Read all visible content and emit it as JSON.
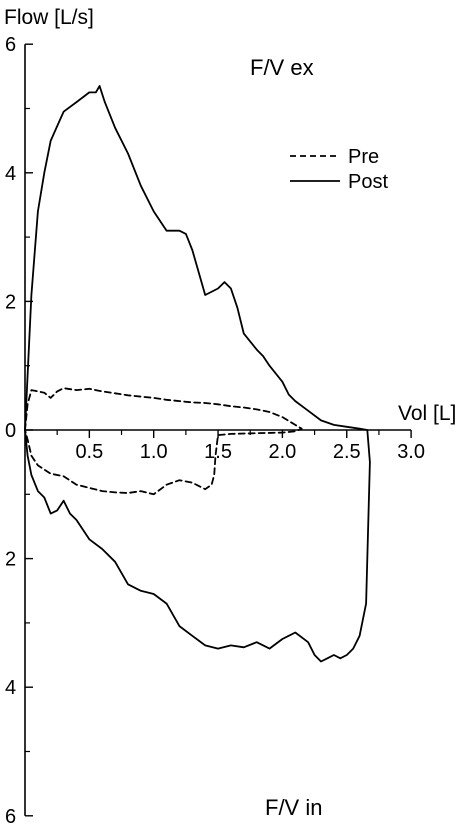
{
  "chart_data": {
    "type": "line",
    "title": "",
    "ylabel": "Flow [L/s]",
    "xlabel": "Vol [L]",
    "upper_label": "F/V ex",
    "lower_label": "F/V in",
    "xlim": [
      0,
      3.0
    ],
    "ylim": [
      -6,
      6
    ],
    "x_ticks": [
      {
        "value": 0.5,
        "label": "0.5"
      },
      {
        "value": 1.0,
        "label": "1.0"
      },
      {
        "value": 1.5,
        "label": "1.5"
      },
      {
        "value": 2.0,
        "label": "2.0"
      },
      {
        "value": 2.5,
        "label": "2.5"
      },
      {
        "value": 3.0,
        "label": "3.0"
      }
    ],
    "y_ticks": [
      {
        "value": 6,
        "label": "6"
      },
      {
        "value": 4,
        "label": "4"
      },
      {
        "value": 2,
        "label": "2"
      },
      {
        "value": 0,
        "label": "0"
      },
      {
        "value": -2,
        "label": "2"
      },
      {
        "value": -4,
        "label": "4"
      },
      {
        "value": -6,
        "label": "6"
      }
    ],
    "grid": false,
    "legend": {
      "placement": "top-right",
      "entries": [
        "Pre",
        "Post"
      ]
    },
    "series": [
      {
        "name": "Pre",
        "style": "dashed",
        "x": [
          0,
          0.02,
          0.05,
          0.1,
          0.15,
          0.2,
          0.25,
          0.3,
          0.4,
          0.5,
          0.6,
          0.7,
          0.8,
          0.9,
          1.0,
          1.1,
          1.2,
          1.3,
          1.4,
          1.5,
          1.6,
          1.7,
          1.8,
          1.9,
          2.0,
          2.1,
          2.15,
          2.1,
          2.0,
          1.8,
          1.6,
          1.5,
          1.48,
          1.47,
          1.45,
          1.4,
          1.3,
          1.2,
          1.1,
          1.0,
          0.9,
          0.8,
          0.7,
          0.6,
          0.5,
          0.4,
          0.3,
          0.2,
          0.1,
          0.05,
          0.02,
          0
        ],
        "y": [
          0,
          0.4,
          0.62,
          0.6,
          0.58,
          0.5,
          0.6,
          0.65,
          0.62,
          0.64,
          0.6,
          0.57,
          0.54,
          0.52,
          0.5,
          0.47,
          0.45,
          0.43,
          0.42,
          0.4,
          0.37,
          0.35,
          0.32,
          0.28,
          0.2,
          0.08,
          0.02,
          -0.02,
          -0.04,
          -0.05,
          -0.06,
          -0.08,
          -0.4,
          -0.7,
          -0.85,
          -0.92,
          -0.82,
          -0.78,
          -0.85,
          -1.0,
          -0.95,
          -0.98,
          -0.97,
          -0.95,
          -0.9,
          -0.85,
          -0.72,
          -0.68,
          -0.55,
          -0.4,
          -0.15,
          0
        ]
      },
      {
        "name": "Post",
        "style": "solid",
        "x": [
          0,
          0.05,
          0.1,
          0.15,
          0.2,
          0.3,
          0.4,
          0.5,
          0.55,
          0.58,
          0.62,
          0.7,
          0.8,
          0.9,
          1.0,
          1.1,
          1.2,
          1.25,
          1.3,
          1.4,
          1.5,
          1.55,
          1.6,
          1.65,
          1.7,
          1.8,
          1.85,
          1.9,
          2.0,
          2.05,
          2.1,
          2.2,
          2.3,
          2.4,
          2.5,
          2.6,
          2.66,
          2.68,
          2.66,
          2.65,
          2.6,
          2.55,
          2.5,
          2.45,
          2.4,
          2.35,
          2.3,
          2.25,
          2.2,
          2.1,
          2.0,
          1.9,
          1.8,
          1.7,
          1.6,
          1.5,
          1.4,
          1.3,
          1.2,
          1.1,
          1.0,
          0.9,
          0.8,
          0.7,
          0.6,
          0.5,
          0.4,
          0.35,
          0.3,
          0.25,
          0.2,
          0.15,
          0.1,
          0.05,
          0.02,
          0
        ],
        "y": [
          0,
          2.1,
          3.4,
          4.0,
          4.5,
          4.95,
          5.1,
          5.25,
          5.25,
          5.35,
          5.1,
          4.7,
          4.3,
          3.8,
          3.4,
          3.1,
          3.1,
          3.05,
          2.8,
          2.1,
          2.2,
          2.3,
          2.2,
          1.9,
          1.5,
          1.25,
          1.15,
          1.0,
          0.75,
          0.55,
          0.45,
          0.3,
          0.15,
          0.08,
          0.05,
          0.02,
          0,
          -0.5,
          -2.0,
          -2.7,
          -3.2,
          -3.4,
          -3.5,
          -3.55,
          -3.5,
          -3.55,
          -3.6,
          -3.5,
          -3.3,
          -3.15,
          -3.25,
          -3.4,
          -3.3,
          -3.38,
          -3.35,
          -3.4,
          -3.35,
          -3.2,
          -3.05,
          -2.7,
          -2.55,
          -2.5,
          -2.4,
          -2.05,
          -1.85,
          -1.7,
          -1.4,
          -1.3,
          -1.1,
          -1.25,
          -1.3,
          -1.05,
          -0.95,
          -0.7,
          -0.4,
          0
        ]
      }
    ]
  }
}
